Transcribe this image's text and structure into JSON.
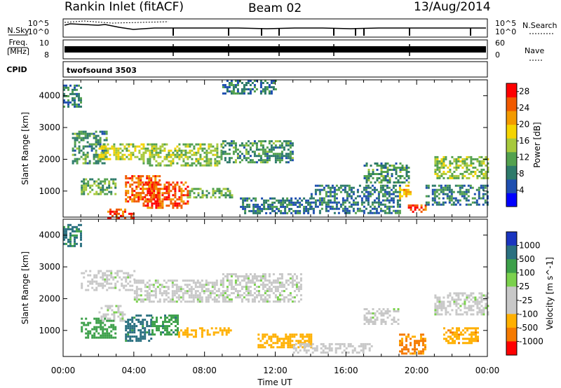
{
  "header": {
    "station": "Rankin Inlet (fitACF)",
    "beam": "Beam 02",
    "date": "13/Aug/2014"
  },
  "status_panel": {
    "left_labels": {
      "nsky": "N.Sky",
      "freq": "Freq.",
      "mhz": "[MHz]",
      "cpid": "CPID"
    },
    "right_labels": {
      "nsearch": "N.Search",
      "nave": "Nave"
    },
    "nsky_ticks": [
      "10^5",
      "10^0"
    ],
    "freq_ticks": [
      "10",
      "8"
    ],
    "nave_ticks": [
      "60",
      "0"
    ],
    "cpid_text": "twofsound 3503"
  },
  "colors": {
    "power": [
      "#0000ff",
      "#1f4fb0",
      "#2d7a6a",
      "#53a14e",
      "#a7c93c",
      "#f5d400",
      "#f39a00",
      "#f15a00",
      "#ff0000"
    ],
    "velocity": [
      "#1a35c0",
      "#2a7080",
      "#3da04a",
      "#7bd14d",
      "#c8c8c8",
      "#c8c8c8",
      "#ffb000",
      "#f57a00",
      "#ff0000"
    ]
  },
  "chart_data": [
    {
      "type": "heatmap",
      "title": "",
      "xlabel": "",
      "ylabel": "Slant Range [km]",
      "ylim": [
        180,
        4500
      ],
      "xlim_hours": [
        0,
        24
      ],
      "y_ticks": [
        1000,
        2000,
        3000,
        4000
      ],
      "colorbar": {
        "label": "Power [dB]",
        "ticks": [
          4,
          8,
          12,
          16,
          20,
          24,
          28
        ],
        "range": [
          0,
          30
        ]
      },
      "regions": [
        {
          "x": [
            0.0,
            1.0
          ],
          "y": [
            3650,
            4350
          ],
          "value": 8
        },
        {
          "x": [
            0.5,
            2.5
          ],
          "y": [
            1900,
            2900
          ],
          "value": 10
        },
        {
          "x": [
            2.0,
            4.5
          ],
          "y": [
            2000,
            2500
          ],
          "value": 16
        },
        {
          "x": [
            4.5,
            9.0
          ],
          "y": [
            1800,
            2500
          ],
          "value": 14
        },
        {
          "x": [
            9.0,
            13.0
          ],
          "y": [
            1900,
            2600
          ],
          "value": 10
        },
        {
          "x": [
            1.0,
            3.0
          ],
          "y": [
            900,
            1400
          ],
          "value": 12
        },
        {
          "x": [
            3.5,
            5.5
          ],
          "y": [
            700,
            1500
          ],
          "value": 24
        },
        {
          "x": [
            4.5,
            7.0
          ],
          "y": [
            500,
            1300
          ],
          "value": 26
        },
        {
          "x": [
            2.5,
            4.0
          ],
          "y": [
            180,
            450
          ],
          "value": 26
        },
        {
          "x": [
            7.0,
            9.5
          ],
          "y": [
            800,
            1100
          ],
          "value": 12
        },
        {
          "x": [
            10.0,
            14.0
          ],
          "y": [
            300,
            800
          ],
          "value": 8
        },
        {
          "x": [
            14.0,
            19.0
          ],
          "y": [
            300,
            1200
          ],
          "value": 8
        },
        {
          "x": [
            17.0,
            19.5
          ],
          "y": [
            1300,
            1900
          ],
          "value": 10
        },
        {
          "x": [
            19.0,
            19.6
          ],
          "y": [
            800,
            1200
          ],
          "value": 20
        },
        {
          "x": [
            19.5,
            20.5
          ],
          "y": [
            380,
            580
          ],
          "value": 26
        },
        {
          "x": [
            21.0,
            24.0
          ],
          "y": [
            1400,
            2100
          ],
          "value": 14
        },
        {
          "x": [
            20.5,
            24.0
          ],
          "y": [
            600,
            1200
          ],
          "value": 8
        },
        {
          "x": [
            9.0,
            12.0
          ],
          "y": [
            4100,
            4500
          ],
          "value": 8
        }
      ]
    },
    {
      "type": "heatmap",
      "title": "",
      "xlabel": "Time UT",
      "ylabel": "Slant Range [km]",
      "ylim": [
        180,
        4500
      ],
      "xlim_hours": [
        0,
        24
      ],
      "y_ticks": [
        1000,
        2000,
        3000,
        4000
      ],
      "x_ticks": [
        "00:00",
        "04:00",
        "08:00",
        "12:00",
        "16:00",
        "20:00",
        "00:00"
      ],
      "colorbar": {
        "label": "Velocity [m s^-1]",
        "ticks": [
          1000,
          500,
          100,
          25,
          -25,
          -100,
          -500,
          -1000
        ]
      },
      "regions": [
        {
          "x": [
            0.0,
            1.0
          ],
          "y": [
            3650,
            4350
          ],
          "value": 600
        },
        {
          "x": [
            1.0,
            4.0
          ],
          "y": [
            2300,
            2900
          ],
          "value": 0
        },
        {
          "x": [
            4.0,
            9.0
          ],
          "y": [
            1900,
            2600
          ],
          "value": 0
        },
        {
          "x": [
            9.0,
            13.5
          ],
          "y": [
            1900,
            2800
          ],
          "value": 0
        },
        {
          "x": [
            2.0,
            3.5
          ],
          "y": [
            1300,
            1800
          ],
          "value": 0
        },
        {
          "x": [
            1.0,
            3.0
          ],
          "y": [
            800,
            1400
          ],
          "value": 300
        },
        {
          "x": [
            3.5,
            5.0
          ],
          "y": [
            700,
            1500
          ],
          "value": 700
        },
        {
          "x": [
            5.0,
            6.5
          ],
          "y": [
            900,
            1500
          ],
          "value": 400
        },
        {
          "x": [
            6.5,
            8.0
          ],
          "y": [
            800,
            1100
          ],
          "value": -300
        },
        {
          "x": [
            8.0,
            9.5
          ],
          "y": [
            900,
            1100
          ],
          "value": -200
        },
        {
          "x": [
            11.0,
            14.0
          ],
          "y": [
            500,
            900
          ],
          "value": -200
        },
        {
          "x": [
            13.0,
            17.5
          ],
          "y": [
            300,
            600
          ],
          "value": -50
        },
        {
          "x": [
            19.0,
            20.5
          ],
          "y": [
            300,
            900
          ],
          "value": -600
        },
        {
          "x": [
            21.5,
            23.5
          ],
          "y": [
            600,
            1100
          ],
          "value": -400
        },
        {
          "x": [
            21.0,
            24.0
          ],
          "y": [
            1500,
            2200
          ],
          "value": 0
        },
        {
          "x": [
            17.0,
            19.0
          ],
          "y": [
            1200,
            1700
          ],
          "value": 0
        }
      ]
    }
  ],
  "bottom_axis": {
    "x_ticks": [
      "00:00",
      "04:00",
      "08:00",
      "12:00",
      "16:00",
      "20:00",
      "00:00"
    ],
    "xlabel": "Time UT"
  }
}
